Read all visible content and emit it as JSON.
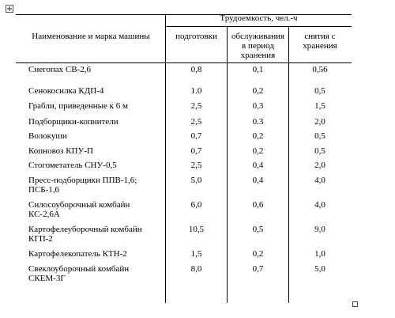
{
  "table": {
    "header": {
      "name": "Наименование и марка машины",
      "group": "Трудоемкость, чел.-ч",
      "columns": [
        "подготовки",
        "обслуживания в период хранения",
        "снятия с хранения"
      ]
    },
    "rows": [
      [
        "Снегопах СВ-2,6",
        "0,8",
        "0,1",
        "0,56"
      ],
      [
        "Сенокосилка КДП-4",
        "1.0",
        "0,2",
        "0,5"
      ],
      [
        "Грабли, приведенные к 6 м",
        "2,5",
        "0,3",
        "1,5"
      ],
      [
        "Подборщики-копнители",
        "2,5",
        "0.3",
        "2,0"
      ],
      [
        "Волокуши",
        "0,7",
        "0,2",
        "0,5"
      ],
      [
        "Копновоз КПУ-П",
        "0,7",
        "0,2",
        "0,5"
      ],
      [
        "Стогометатель СНУ-0,5",
        "2,5",
        "0,4",
        "2,0"
      ],
      [
        "Пресс-подборщики ППВ-1,6; ПСБ-1,6",
        "5,0",
        "0,4",
        "4,0"
      ],
      [
        "Силосоуборочный комбайн КС-2,6А",
        "6,0",
        "0,6",
        "4,0"
      ],
      [
        "Картофелеуборочный комбайн КГП-2",
        "10,5",
        "0,5",
        "9,0"
      ],
      [
        "Картофелекопатель КТН-2",
        "1,5",
        "0,2",
        "1,0"
      ],
      [
        "Свеклоуборочный комбайн СКЕМ-3Г",
        "8,0",
        "0,7",
        "5,0"
      ]
    ]
  }
}
